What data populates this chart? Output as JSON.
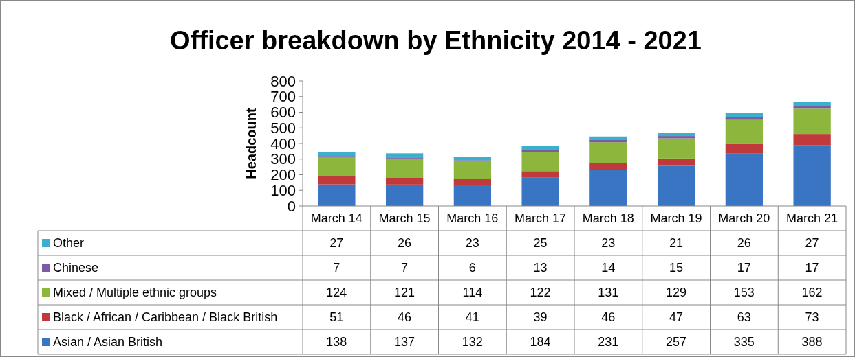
{
  "chart_data": {
    "type": "bar",
    "title": "Officer breakdown by Ethnicity 2014 - 2021",
    "ylabel": "Headcount",
    "categories": [
      "March 14",
      "March 15",
      "March 16",
      "March 17",
      "March 18",
      "March 19",
      "March 20",
      "March 21"
    ],
    "series": [
      {
        "name": "Asian / Asian British",
        "color": "#3a75c4",
        "values": [
          138,
          137,
          132,
          184,
          231,
          257,
          335,
          388
        ]
      },
      {
        "name": "Black / African / Caribbean / Black British",
        "color": "#c0393b",
        "values": [
          51,
          46,
          41,
          39,
          46,
          47,
          63,
          73
        ]
      },
      {
        "name": "Mixed / Multiple ethnic groups",
        "color": "#8db63c",
        "values": [
          124,
          121,
          114,
          122,
          131,
          129,
          153,
          162
        ]
      },
      {
        "name": "Chinese",
        "color": "#7b5aa6",
        "values": [
          7,
          7,
          6,
          13,
          14,
          15,
          17,
          17
        ]
      },
      {
        "name": "Other",
        "color": "#3ab0cc",
        "values": [
          27,
          26,
          23,
          25,
          23,
          21,
          26,
          27
        ]
      }
    ],
    "stacked": true,
    "ylim": [
      0,
      800
    ],
    "yticks": [
      0,
      100,
      200,
      300,
      400,
      500,
      600,
      700,
      800
    ],
    "data_labels": true,
    "legend": "bottom"
  }
}
